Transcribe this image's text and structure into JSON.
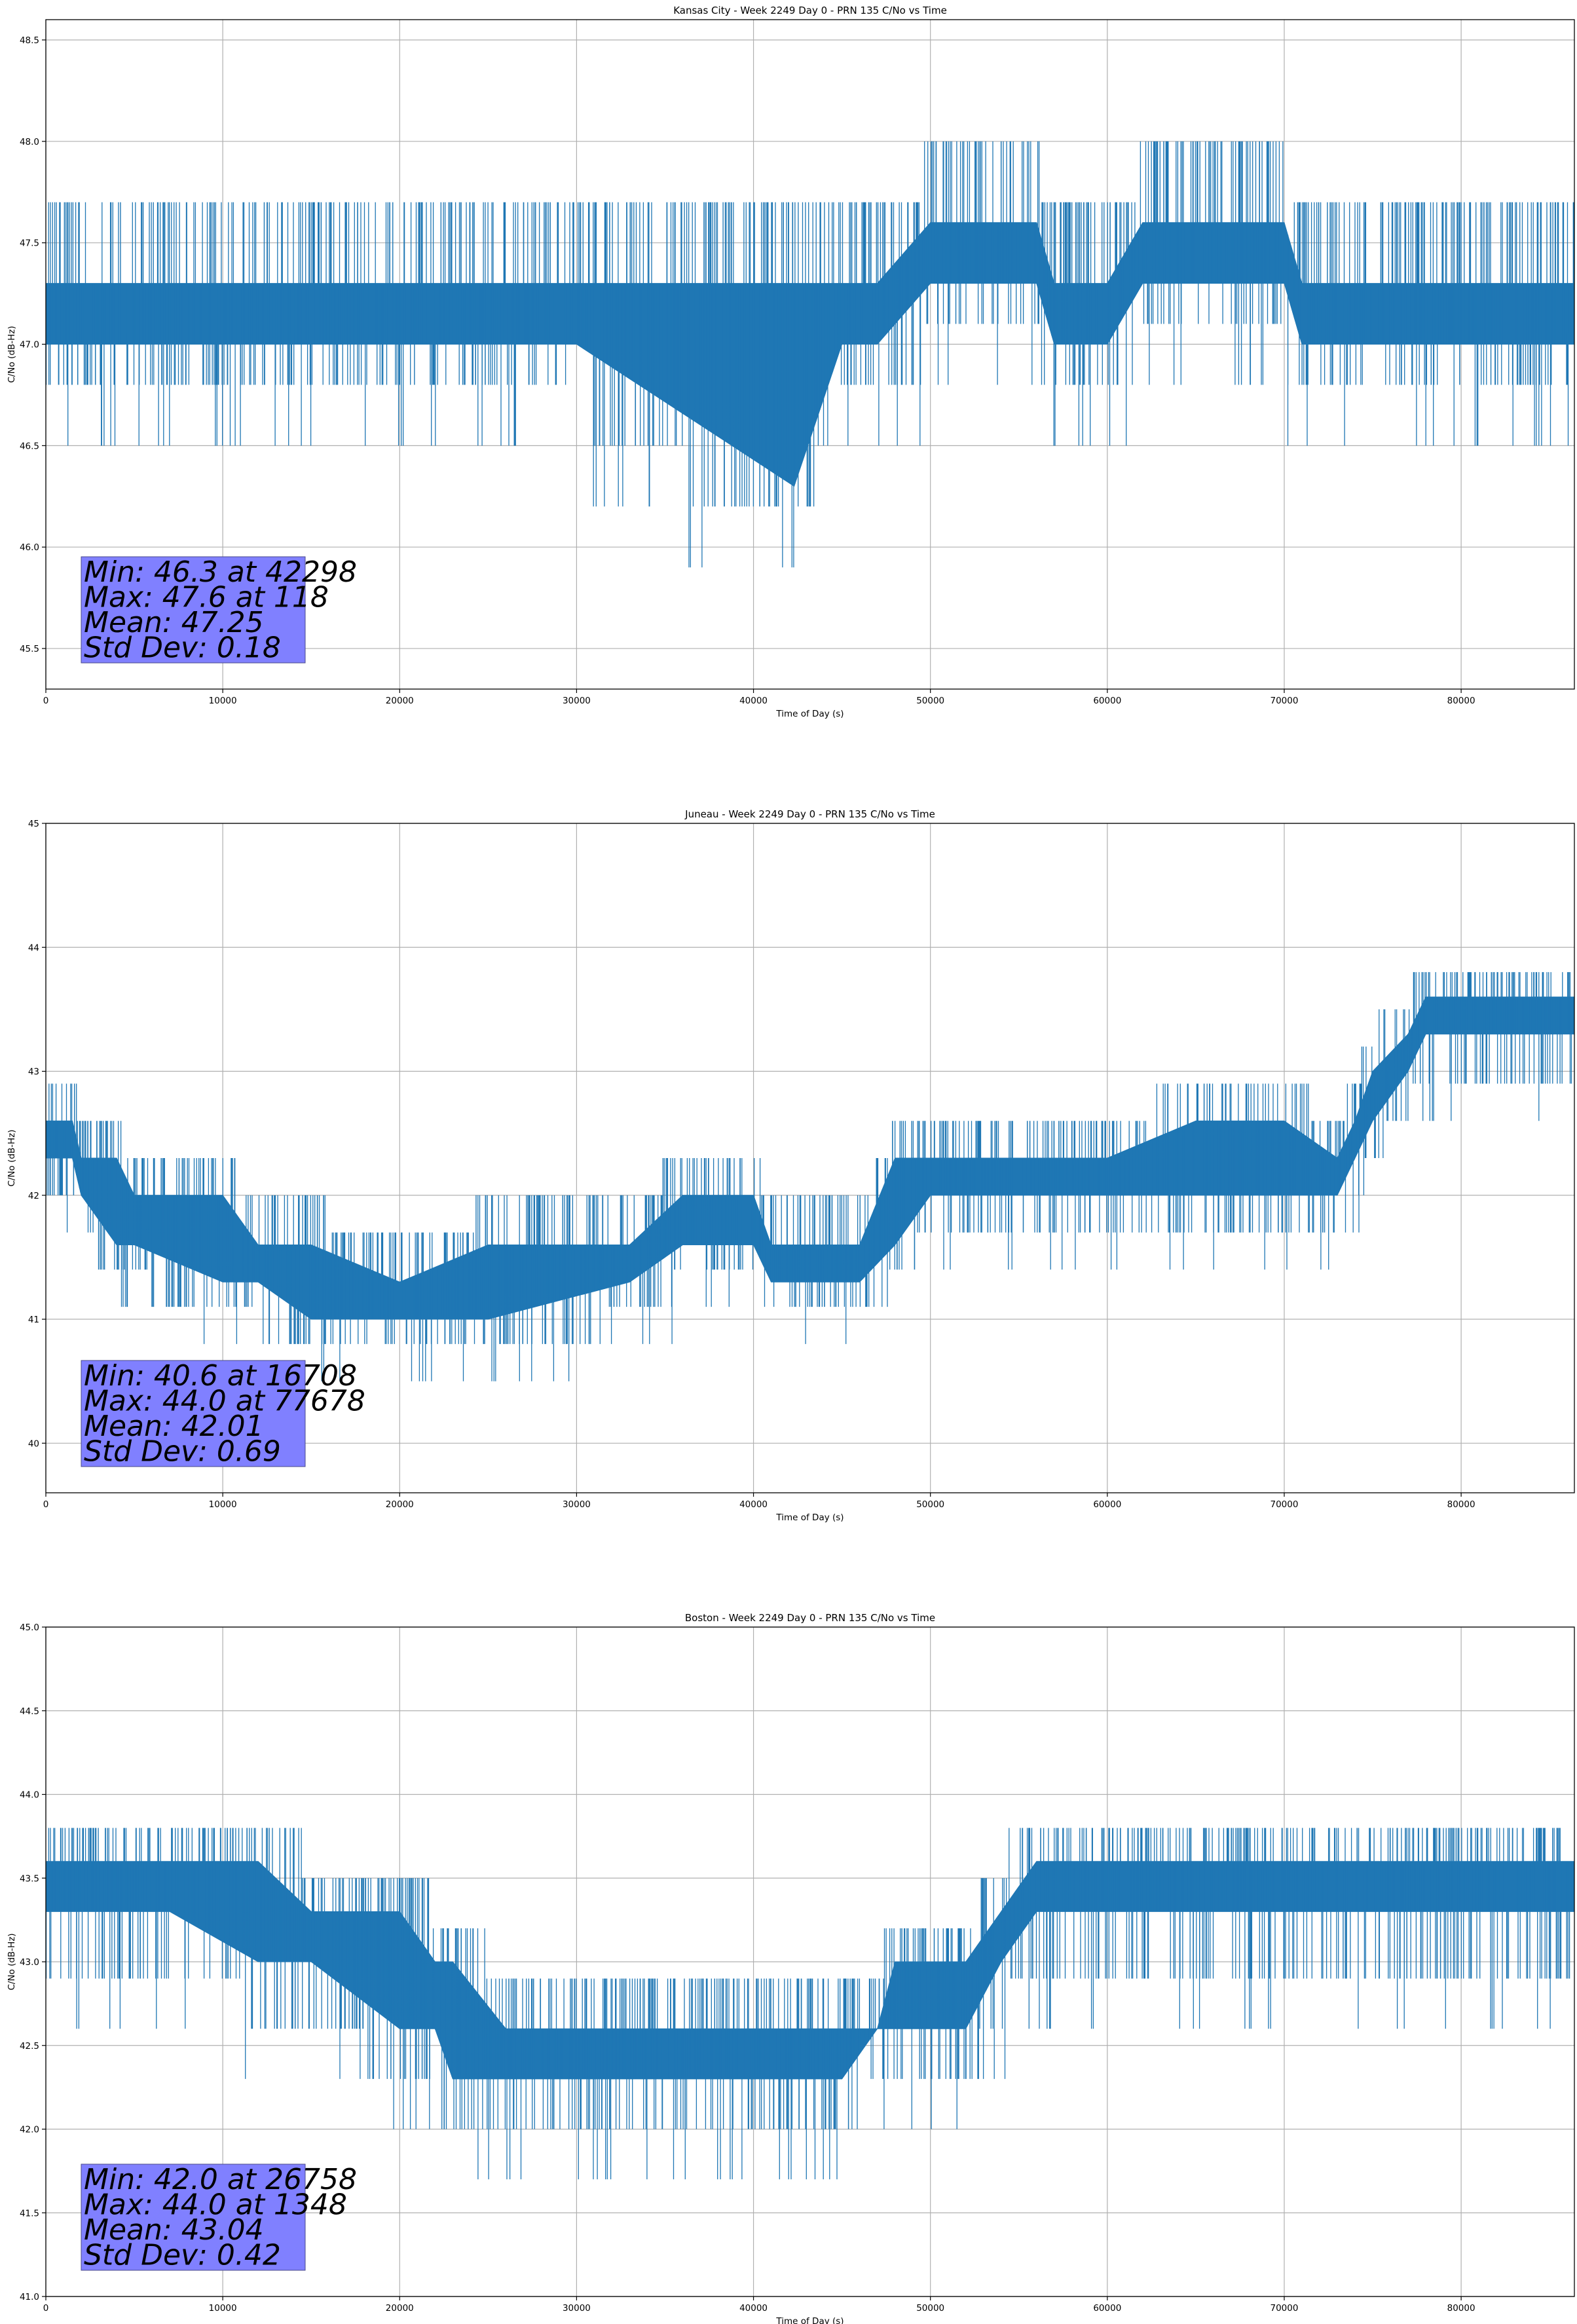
{
  "chart_data": [
    {
      "type": "line",
      "title": "Kansas City - Week 2249 Day 0 - PRN 135 C/No vs Time",
      "xlabel": "Time of Day (s)",
      "ylabel": "C/No (dB-Hz)",
      "xlim": [
        0,
        86400
      ],
      "ylim": [
        45.3,
        48.6
      ],
      "xticks": [
        0,
        10000,
        20000,
        30000,
        40000,
        50000,
        60000,
        70000,
        80000
      ],
      "xtick_labels": [
        "0",
        "10000",
        "20000",
        "30000",
        "40000",
        "50000",
        "60000",
        "70000",
        "80000"
      ],
      "yticks": [
        45.5,
        46.0,
        46.5,
        47.0,
        47.5,
        48.0,
        48.5
      ],
      "ytick_labels": [
        "45.5",
        "46.0",
        "46.5",
        "47.0",
        "47.5",
        "48.0",
        "48.5"
      ],
      "grid": true,
      "series_color": "#1f77b4",
      "series": [
        {
          "x": [
            0,
            5000,
            10000,
            15000,
            20000,
            30000,
            42298,
            45000,
            47000,
            50000,
            56000,
            57000,
            60000,
            62000,
            70000,
            71000,
            75000,
            80000,
            86400
          ],
          "low": [
            47.0,
            47.0,
            47.0,
            47.0,
            47.0,
            47.0,
            46.3,
            47.0,
            47.0,
            47.3,
            47.3,
            47.0,
            47.0,
            47.3,
            47.3,
            47.0,
            47.0,
            47.0,
            47.0
          ],
          "high": [
            47.3,
            47.3,
            47.3,
            47.3,
            47.3,
            47.3,
            47.3,
            47.3,
            47.3,
            47.6,
            47.6,
            47.3,
            47.3,
            47.6,
            47.6,
            47.3,
            47.3,
            47.3,
            47.3
          ]
        }
      ],
      "stats": {
        "min": "Min: 46.3 at 42298",
        "max": "Max: 47.6 at 118",
        "mean": "Mean: 47.25",
        "std": "Std Dev: 0.18"
      },
      "stats_box_color": "#8080ff"
    },
    {
      "type": "line",
      "title": "Juneau - Week 2249 Day 0 - PRN 135 C/No vs Time",
      "xlabel": "Time of Day (s)",
      "ylabel": "C/No (dB-Hz)",
      "xlim": [
        0,
        86400
      ],
      "ylim": [
        39.6,
        45.0
      ],
      "xticks": [
        0,
        10000,
        20000,
        30000,
        40000,
        50000,
        60000,
        70000,
        80000
      ],
      "xtick_labels": [
        "0",
        "10000",
        "20000",
        "30000",
        "40000",
        "50000",
        "60000",
        "70000",
        "80000"
      ],
      "yticks": [
        40,
        41,
        42,
        43,
        44,
        45
      ],
      "ytick_labels": [
        "40",
        "41",
        "42",
        "43",
        "44",
        "45"
      ],
      "grid": true,
      "series_color": "#1f77b4",
      "series": [
        {
          "x": [
            0,
            1500,
            2000,
            4000,
            5000,
            10000,
            12000,
            15000,
            20000,
            25000,
            33000,
            36000,
            40000,
            41000,
            43000,
            46000,
            48000,
            50000,
            55000,
            60000,
            65000,
            70000,
            73000,
            74000,
            75000,
            77000,
            78000,
            80000,
            86400
          ],
          "low": [
            42.3,
            42.3,
            42.0,
            41.6,
            41.6,
            41.3,
            41.3,
            41.0,
            41.0,
            41.0,
            41.3,
            41.6,
            41.6,
            41.3,
            41.3,
            41.3,
            41.6,
            42.0,
            42.0,
            42.0,
            42.0,
            42.0,
            42.0,
            42.3,
            42.6,
            43.0,
            43.3,
            43.3,
            43.3
          ],
          "high": [
            42.6,
            42.6,
            42.3,
            42.3,
            42.0,
            42.0,
            41.6,
            41.6,
            41.3,
            41.6,
            41.6,
            42.0,
            42.0,
            41.6,
            41.6,
            41.6,
            42.3,
            42.3,
            42.3,
            42.3,
            42.6,
            42.6,
            42.3,
            42.6,
            43.0,
            43.3,
            43.6,
            43.6,
            43.6
          ]
        }
      ],
      "stats": {
        "min": "Min: 40.6 at 16708",
        "max": "Max: 44.0 at 77678",
        "mean": "Mean: 42.01",
        "std": "Std Dev: 0.69"
      },
      "stats_box_color": "#8080ff"
    },
    {
      "type": "line",
      "title": "Boston - Week 2249 Day 0 - PRN 135 C/No vs Time",
      "xlabel": "Time of Day (s)",
      "ylabel": "C/No (dB-Hz)",
      "xlim": [
        0,
        86400
      ],
      "ylim": [
        41.0,
        45.0
      ],
      "xticks": [
        0,
        10000,
        20000,
        30000,
        40000,
        50000,
        60000,
        70000,
        80000
      ],
      "xtick_labels": [
        "0",
        "10000",
        "20000",
        "30000",
        "40000",
        "50000",
        "60000",
        "70000",
        "80000"
      ],
      "yticks": [
        41.0,
        41.5,
        42.0,
        42.5,
        43.0,
        43.5,
        44.0,
        44.5,
        45.0
      ],
      "ytick_labels": [
        "41.0",
        "41.5",
        "42.0",
        "42.5",
        "43.0",
        "43.5",
        "44.0",
        "44.5",
        "45.0"
      ],
      "grid": true,
      "series_color": "#1f77b4",
      "series": [
        {
          "x": [
            0,
            7000,
            12000,
            15000,
            20000,
            22000,
            23000,
            26000,
            35000,
            40000,
            45000,
            47000,
            48000,
            52000,
            54000,
            56000,
            60000,
            70000,
            80000,
            86400
          ],
          "low": [
            43.3,
            43.3,
            43.0,
            43.0,
            42.6,
            42.6,
            42.3,
            42.3,
            42.3,
            42.3,
            42.3,
            42.6,
            42.6,
            42.6,
            43.0,
            43.3,
            43.3,
            43.3,
            43.3,
            43.3
          ],
          "high": [
            43.6,
            43.6,
            43.6,
            43.3,
            43.3,
            43.0,
            43.0,
            42.6,
            42.6,
            42.6,
            42.6,
            42.6,
            43.0,
            43.0,
            43.3,
            43.6,
            43.6,
            43.6,
            43.6,
            43.6
          ]
        }
      ],
      "stats": {
        "min": "Min: 42.0 at 26758",
        "max": "Max: 44.0 at 1348",
        "mean": "Mean: 43.04",
        "std": "Std Dev: 0.42"
      },
      "stats_box_color": "#8080ff"
    }
  ]
}
